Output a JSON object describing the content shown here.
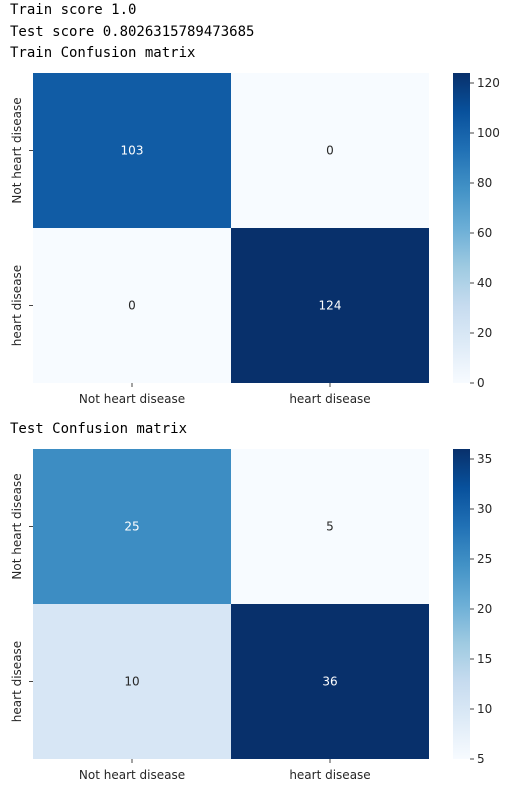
{
  "output": {
    "train_score": "Train score 1.0",
    "test_score": "Test score 0.8026315789473685",
    "train_title": "Train Confusion matrix",
    "test_title": "Test Confusion matrix"
  },
  "chart_data": [
    {
      "type": "heatmap",
      "title": "",
      "colormap": "Blues",
      "x_categories": [
        "Not heart disease",
        "heart disease"
      ],
      "y_categories": [
        "Not heart disease",
        "heart disease"
      ],
      "values": [
        [
          103,
          0
        ],
        [
          0,
          124
        ]
      ],
      "colorbar": {
        "min": 0,
        "max": 124,
        "ticks": [
          0,
          20,
          40,
          60,
          80,
          100,
          120
        ]
      }
    },
    {
      "type": "heatmap",
      "title": "",
      "colormap": "Blues",
      "x_categories": [
        "Not heart disease",
        "heart disease"
      ],
      "y_categories": [
        "Not heart disease",
        "heart disease"
      ],
      "values": [
        [
          25,
          5
        ],
        [
          10,
          36
        ]
      ],
      "colorbar": {
        "min": 5,
        "max": 36,
        "ticks": [
          5,
          10,
          15,
          20,
          25,
          30,
          35
        ]
      }
    }
  ]
}
